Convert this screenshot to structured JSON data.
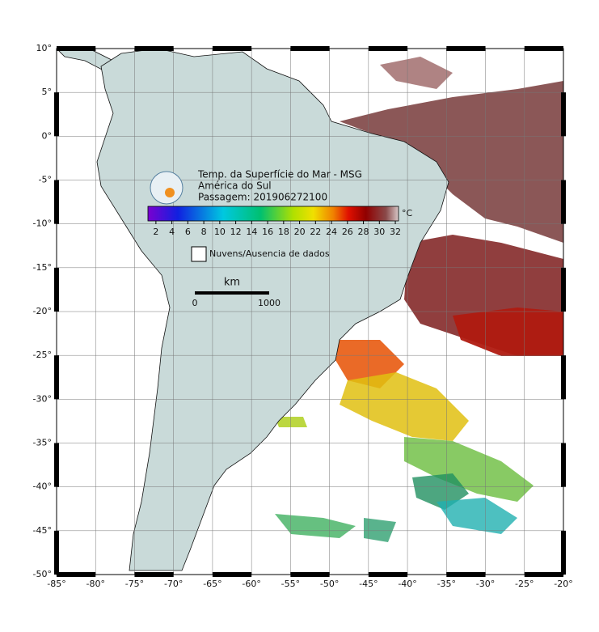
{
  "map": {
    "title_lines": [
      "Temp. da Superfície do Mar - MSG",
      "América do Sul",
      "Passagem: 201906272100"
    ],
    "lon_range": [
      -85,
      -20
    ],
    "lat_range": [
      -50,
      10
    ],
    "lon_ticks": [
      {
        "value": -85,
        "label": "-85°"
      },
      {
        "value": -80,
        "label": "-80°"
      },
      {
        "value": -75,
        "label": "-75°"
      },
      {
        "value": -70,
        "label": "-70°"
      },
      {
        "value": -65,
        "label": "-65°"
      },
      {
        "value": -60,
        "label": "-60°"
      },
      {
        "value": -55,
        "label": "-55°"
      },
      {
        "value": -50,
        "label": "-50°"
      },
      {
        "value": -45,
        "label": "-45°"
      },
      {
        "value": -40,
        "label": "-40°"
      },
      {
        "value": -35,
        "label": "-35°"
      },
      {
        "value": -30,
        "label": "-30°"
      },
      {
        "value": -25,
        "label": "-25°"
      },
      {
        "value": -20,
        "label": "-20°"
      }
    ],
    "lat_ticks": [
      {
        "value": 10,
        "label": "10°"
      },
      {
        "value": 5,
        "label": "5°"
      },
      {
        "value": 0,
        "label": "0°"
      },
      {
        "value": -5,
        "label": "-5°"
      },
      {
        "value": -10,
        "label": "-10°"
      },
      {
        "value": -15,
        "label": "-15°"
      },
      {
        "value": -20,
        "label": "-20°"
      },
      {
        "value": -25,
        "label": "-25°"
      },
      {
        "value": -30,
        "label": "-30°"
      },
      {
        "value": -35,
        "label": "-35°"
      },
      {
        "value": -40,
        "label": "-40°"
      },
      {
        "value": -45,
        "label": "-45°"
      },
      {
        "value": -50,
        "label": "-50°"
      }
    ],
    "colorbar": {
      "unit": "°C",
      "range": [
        1,
        32.4
      ],
      "ticks": [
        2,
        4,
        6,
        8,
        10,
        12,
        14,
        16,
        18,
        20,
        22,
        24,
        26,
        28,
        30,
        32
      ]
    },
    "legend": "Nuvens/Ausencia de dados",
    "scale_bar": {
      "unit": "km",
      "labels": [
        "0",
        "1000"
      ]
    }
  }
}
